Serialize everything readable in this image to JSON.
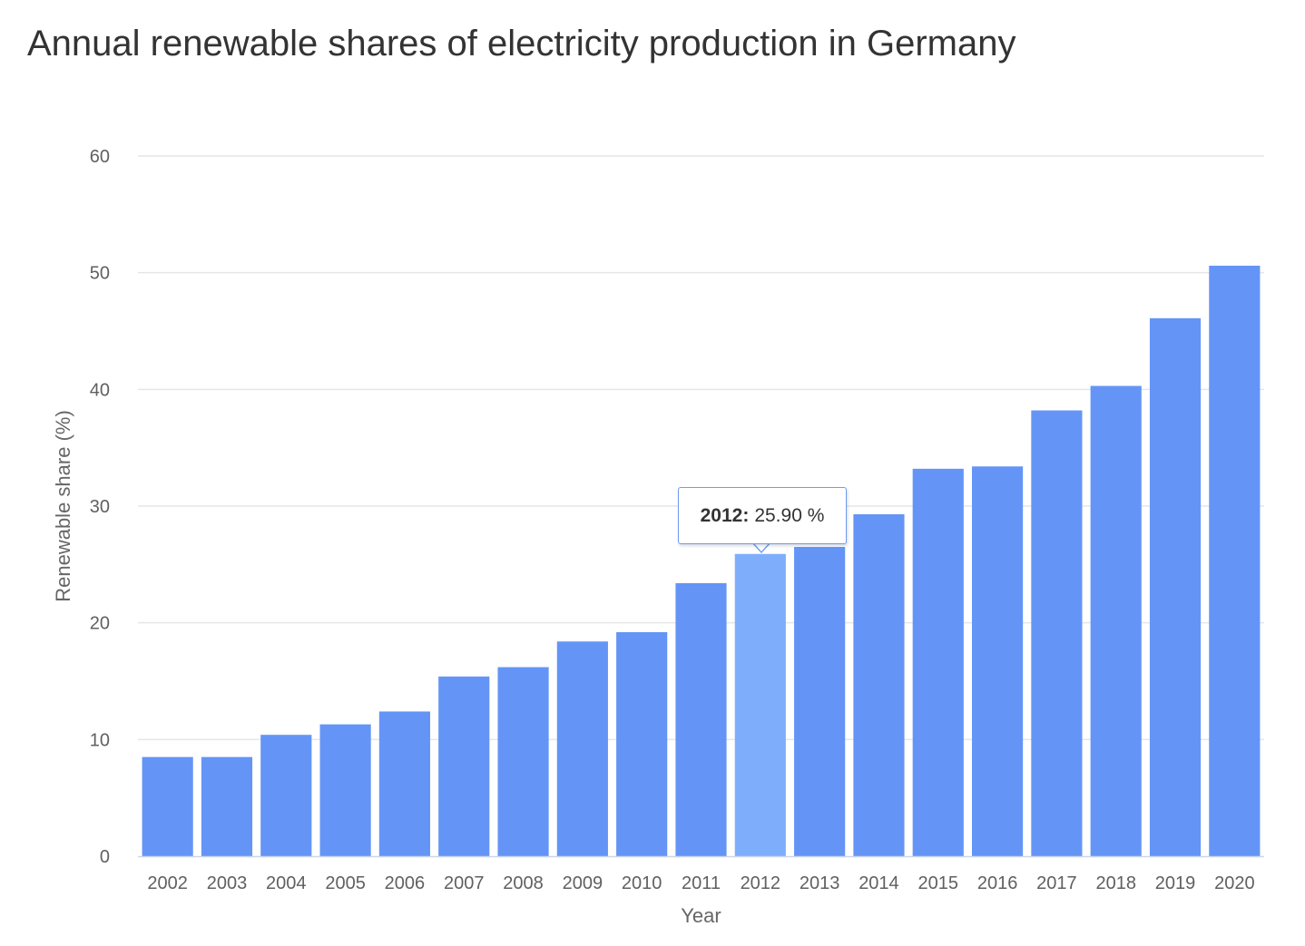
{
  "chart_data": {
    "type": "bar",
    "title": "Annual renewable shares of electricity production in Germany",
    "xlabel": "Year",
    "ylabel": "Renewable share (%)",
    "ylim": [
      0,
      60
    ],
    "yticks": [
      0,
      10,
      20,
      30,
      40,
      50,
      60
    ],
    "grid": true,
    "categories": [
      "2002",
      "2003",
      "2004",
      "2005",
      "2006",
      "2007",
      "2008",
      "2009",
      "2010",
      "2011",
      "2012",
      "2013",
      "2014",
      "2015",
      "2016",
      "2017",
      "2018",
      "2019",
      "2020"
    ],
    "values": [
      8.5,
      8.5,
      10.4,
      11.3,
      12.4,
      15.4,
      16.2,
      18.4,
      19.2,
      23.4,
      25.9,
      26.5,
      29.3,
      33.2,
      33.4,
      38.2,
      40.3,
      46.1,
      50.6
    ],
    "colors": {
      "bar": "#6495f6",
      "highlight": "#7eaefb",
      "grid": "#e6e6e6",
      "axis": "#ccd6eb"
    },
    "highlighted_index": 10
  },
  "tooltip": {
    "year": "2012:",
    "value": "25.90 %"
  }
}
